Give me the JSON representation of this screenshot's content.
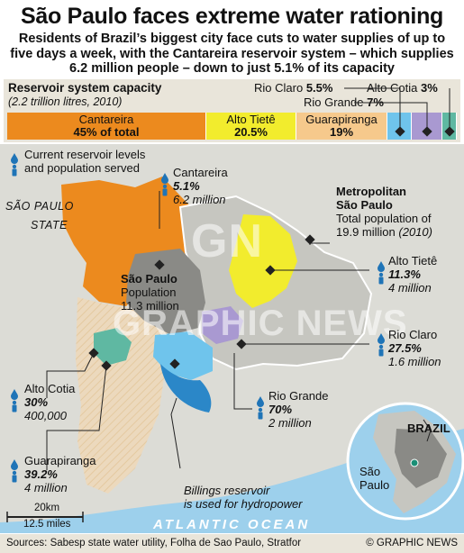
{
  "header": {
    "title": "São Paulo faces extreme water rationing",
    "subtitle": "Residents of Brazil’s biggest city face cuts to water supplies of up to five days a week, with the Cantareira reservoir system  – which supplies 6.2 million people – down to just 5.1% of its capacity"
  },
  "capacity": {
    "title": "Reservoir system capacity",
    "note": "(2.2 trillion litres, 2010)",
    "segments": [
      {
        "name": "Cantareira",
        "value": "45% of total",
        "share": 45,
        "color": "#ec8a1e"
      },
      {
        "name": "Alto Tietê",
        "value": "20.5%",
        "share": 20.5,
        "color": "#f2ec2d"
      },
      {
        "name": "Guarapiranga",
        "value": "19%",
        "share": 19,
        "color": "#f6c98c"
      },
      {
        "name": "Rio Claro",
        "value": "5.5%",
        "share": 5.5,
        "color": "#6fc4ec"
      },
      {
        "name": "Rio Grande",
        "value": "7%",
        "share": 7,
        "color": "#a999d1"
      },
      {
        "name": "Alto Cotia",
        "value": "3%",
        "share": 3,
        "color": "#5fb8a2"
      }
    ]
  },
  "legend": {
    "text": "Current reservoir levels and population served"
  },
  "map": {
    "state_label_1": "SÃO PAULO",
    "state_label_2": "STATE",
    "city_name": "São Paulo",
    "city_pop_label": "Population",
    "city_pop": "11.3 million",
    "metro_title_1": "Metropolitan",
    "metro_title_2": "São Paulo",
    "metro_pop_1": "Total population of",
    "metro_pop_2": "19.9 million",
    "metro_year": "(2010)",
    "billings_1": "Billings reservoir",
    "billings_2": "is used for hydropower",
    "ocean": "ATLANTIC OCEAN",
    "scale_km": "20km",
    "scale_mi": "12.5 miles",
    "inset_country": "BRAZIL",
    "inset_city_1": "São",
    "inset_city_2": "Paulo",
    "watermark_1": "GN",
    "watermark_2": "GRAPHIC NEWS"
  },
  "reservoirs": {
    "cantareira": {
      "name": "Cantareira",
      "level": "5.1%",
      "pop": "6.2 million"
    },
    "alto_tiete": {
      "name": "Alto Tietê",
      "level": "11.3%",
      "pop": "4 million"
    },
    "rio_claro": {
      "name": "Rio Claro",
      "level": "27.5%",
      "pop": "1.6 million"
    },
    "rio_grande": {
      "name": "Rio Grande",
      "level": "70%",
      "pop": "2 million"
    },
    "alto_cotia": {
      "name": "Alto Cotia",
      "level": "30%",
      "pop": "400,000"
    },
    "guarapiranga": {
      "name": "Guarapiranga",
      "level": "39.2%",
      "pop": "4 million"
    }
  },
  "footer": {
    "sources": "Sources: Sabesp state water utility, Folha de Sao Paulo, Stratfor",
    "copyright": "© GRAPHIC NEWS"
  },
  "icons": [
    "water-drop-person-icon",
    "diamond-marker-icon"
  ]
}
